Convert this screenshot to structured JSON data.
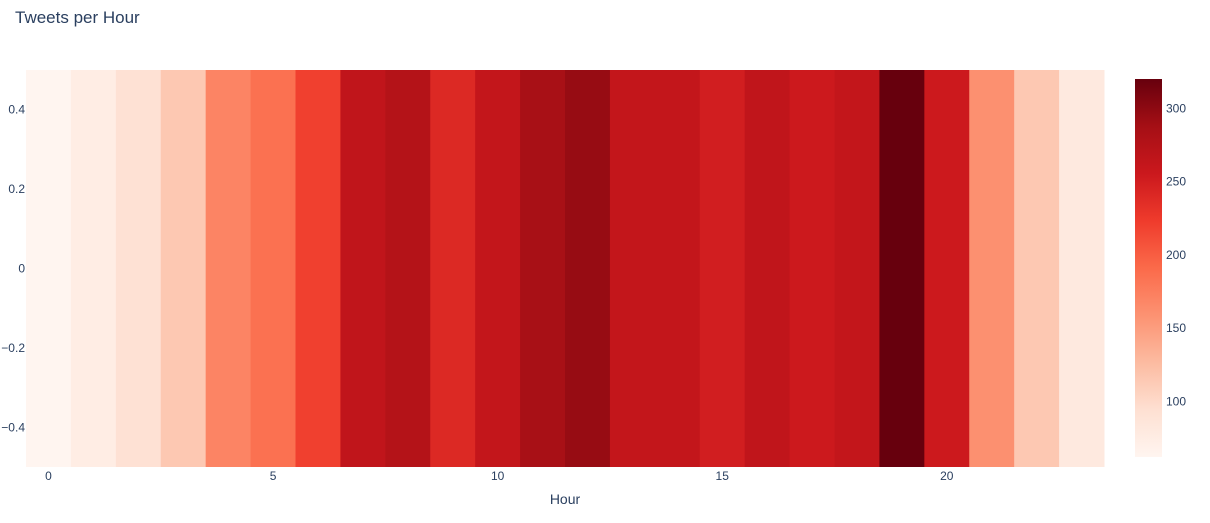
{
  "chart_data": {
    "type": "heatmap",
    "title": "Tweets per Hour",
    "xlabel": "Hour",
    "ylabel": "",
    "x": [
      0,
      1,
      2,
      3,
      4,
      5,
      6,
      7,
      8,
      9,
      10,
      11,
      12,
      13,
      14,
      15,
      16,
      17,
      18,
      19,
      20,
      21,
      22,
      23
    ],
    "y": [
      0
    ],
    "z": [
      [
        62,
        75,
        92,
        115,
        170,
        185,
        220,
        265,
        275,
        240,
        262,
        285,
        295,
        262,
        262,
        250,
        265,
        255,
        262,
        320,
        255,
        160,
        115,
        80
      ]
    ],
    "xlim": [
      -0.5,
      23.5
    ],
    "ylim": [
      -0.5,
      0.5
    ],
    "x_ticks": [
      0,
      5,
      10,
      15,
      20
    ],
    "y_ticks": [
      -0.4,
      -0.2,
      0,
      0.2,
      0.4
    ],
    "y_tick_labels": [
      "−0.4",
      "−0.2",
      "0",
      "0.2",
      "0.4"
    ],
    "colorscale": "Reds",
    "colorbar": {
      "min": 62,
      "max": 320,
      "ticks": [
        100,
        150,
        200,
        250,
        300
      ],
      "colors": [
        "#fff5f0",
        "#fee0d2",
        "#fcbba1",
        "#fc9272",
        "#fb6a4a",
        "#ef3b2c",
        "#cb181d",
        "#a50f15",
        "#67000d"
      ]
    }
  }
}
